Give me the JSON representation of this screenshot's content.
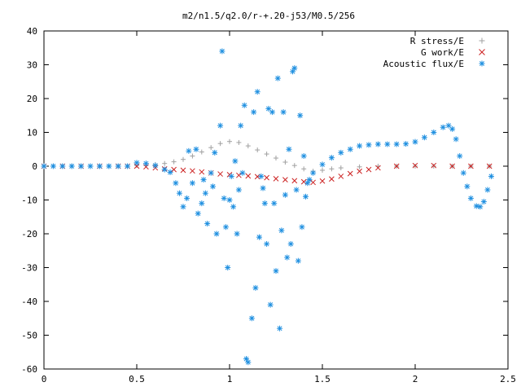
{
  "chart_data": {
    "type": "scatter",
    "title": "m2/n1.5/q2.0/r-+.20-j53/M0.5/256",
    "xlabel": "",
    "ylabel": "",
    "xlim": [
      0,
      2.5
    ],
    "ylim": [
      -60,
      40
    ],
    "x_ticks": [
      0,
      0.5,
      1,
      1.5,
      2,
      2.5
    ],
    "x_tick_labels": [
      "0",
      "0.5",
      "1",
      "1.5",
      "2",
      "2.5"
    ],
    "y_ticks": [
      40,
      30,
      20,
      10,
      0,
      -10,
      -20,
      -30,
      -40,
      -50,
      -60
    ],
    "y_tick_labels": [
      "40",
      "30",
      "20",
      "10",
      "0",
      "-10",
      "-20",
      "-30",
      "-40",
      "-50",
      "-60"
    ],
    "grid": false,
    "legend_position": "top-right",
    "series": [
      {
        "name": "R stress/E",
        "marker": "plus",
        "color": "#a0a0a0",
        "points": [
          [
            0.0,
            0
          ],
          [
            0.05,
            0
          ],
          [
            0.1,
            0
          ],
          [
            0.15,
            0
          ],
          [
            0.2,
            0
          ],
          [
            0.25,
            0
          ],
          [
            0.3,
            0
          ],
          [
            0.35,
            0
          ],
          [
            0.4,
            0
          ],
          [
            0.45,
            0
          ],
          [
            0.5,
            0.2
          ],
          [
            0.55,
            0.3
          ],
          [
            0.6,
            0.5
          ],
          [
            0.65,
            0.8
          ],
          [
            0.7,
            1.3
          ],
          [
            0.75,
            2.0
          ],
          [
            0.8,
            3.0
          ],
          [
            0.85,
            4.2
          ],
          [
            0.9,
            5.5
          ],
          [
            0.95,
            6.7
          ],
          [
            1.0,
            7.3
          ],
          [
            1.05,
            7.0
          ],
          [
            1.1,
            6.0
          ],
          [
            1.15,
            4.8
          ],
          [
            1.2,
            3.6
          ],
          [
            1.25,
            2.4
          ],
          [
            1.3,
            1.2
          ],
          [
            1.35,
            0.2
          ],
          [
            1.4,
            -0.8
          ],
          [
            1.45,
            -1.5
          ],
          [
            1.5,
            -1.2
          ],
          [
            1.55,
            -0.8
          ],
          [
            1.6,
            -0.5
          ],
          [
            1.7,
            -0.2
          ],
          [
            1.8,
            0
          ],
          [
            1.9,
            0
          ],
          [
            2.0,
            0
          ],
          [
            2.1,
            0
          ],
          [
            2.2,
            0
          ],
          [
            2.3,
            0
          ],
          [
            2.4,
            0
          ]
        ]
      },
      {
        "name": "G work/E",
        "marker": "cross",
        "color": "#cc2222",
        "points": [
          [
            0.0,
            0
          ],
          [
            0.1,
            0
          ],
          [
            0.2,
            0
          ],
          [
            0.3,
            0
          ],
          [
            0.4,
            0
          ],
          [
            0.45,
            0
          ],
          [
            0.5,
            0
          ],
          [
            0.55,
            -0.2
          ],
          [
            0.6,
            -0.5
          ],
          [
            0.65,
            -0.8
          ],
          [
            0.7,
            -1.0
          ],
          [
            0.75,
            -1.2
          ],
          [
            0.8,
            -1.4
          ],
          [
            0.85,
            -1.7
          ],
          [
            0.9,
            -2.0
          ],
          [
            0.95,
            -2.3
          ],
          [
            1.0,
            -2.5
          ],
          [
            1.05,
            -2.7
          ],
          [
            1.1,
            -2.9
          ],
          [
            1.15,
            -3.1
          ],
          [
            1.2,
            -3.4
          ],
          [
            1.25,
            -3.7
          ],
          [
            1.3,
            -4.0
          ],
          [
            1.35,
            -4.3
          ],
          [
            1.4,
            -4.6
          ],
          [
            1.45,
            -4.8
          ],
          [
            1.5,
            -4.4
          ],
          [
            1.55,
            -3.8
          ],
          [
            1.6,
            -3.0
          ],
          [
            1.65,
            -2.2
          ],
          [
            1.7,
            -1.5
          ],
          [
            1.75,
            -1.0
          ],
          [
            1.8,
            -0.5
          ],
          [
            1.9,
            0
          ],
          [
            2.0,
            0.2
          ],
          [
            2.1,
            0.2
          ],
          [
            2.2,
            0
          ],
          [
            2.3,
            0
          ],
          [
            2.4,
            0
          ]
        ]
      },
      {
        "name": "Acoustic flux/E",
        "marker": "star",
        "color": "#1e8fe0",
        "points": [
          [
            0.0,
            0
          ],
          [
            0.05,
            0
          ],
          [
            0.1,
            0
          ],
          [
            0.15,
            0
          ],
          [
            0.2,
            0
          ],
          [
            0.25,
            0
          ],
          [
            0.3,
            0
          ],
          [
            0.35,
            0
          ],
          [
            0.4,
            0
          ],
          [
            0.45,
            0
          ],
          [
            0.5,
            1.0
          ],
          [
            0.55,
            0.8
          ],
          [
            0.6,
            0.2
          ],
          [
            0.65,
            -1.0
          ],
          [
            0.68,
            -1.8
          ],
          [
            0.71,
            -5.0
          ],
          [
            0.73,
            -8.0
          ],
          [
            0.75,
            -12.0
          ],
          [
            0.77,
            -9.5
          ],
          [
            0.78,
            4.5
          ],
          [
            0.8,
            -5.0
          ],
          [
            0.82,
            5.0
          ],
          [
            0.83,
            -14.0
          ],
          [
            0.85,
            -11.0
          ],
          [
            0.86,
            -4.0
          ],
          [
            0.87,
            -8.0
          ],
          [
            0.88,
            -17.0
          ],
          [
            0.9,
            -2.0
          ],
          [
            0.91,
            -6.0
          ],
          [
            0.92,
            4.0
          ],
          [
            0.93,
            -20.0
          ],
          [
            0.95,
            12.0
          ],
          [
            0.96,
            34.0
          ],
          [
            0.97,
            -9.5
          ],
          [
            0.98,
            -18.0
          ],
          [
            0.99,
            -30.0
          ],
          [
            1.0,
            -10.0
          ],
          [
            1.01,
            -3.0
          ],
          [
            1.02,
            -12.0
          ],
          [
            1.03,
            1.5
          ],
          [
            1.04,
            -20.0
          ],
          [
            1.05,
            -7.0
          ],
          [
            1.06,
            12.0
          ],
          [
            1.07,
            -2.0
          ],
          [
            1.08,
            18.0
          ],
          [
            1.09,
            -57.0
          ],
          [
            1.1,
            -58.0
          ],
          [
            1.12,
            -45.0
          ],
          [
            1.13,
            16.0
          ],
          [
            1.14,
            -36.0
          ],
          [
            1.15,
            22.0
          ],
          [
            1.16,
            -21.0
          ],
          [
            1.17,
            -3.0
          ],
          [
            1.18,
            -6.5
          ],
          [
            1.19,
            -11.0
          ],
          [
            1.2,
            -23.0
          ],
          [
            1.21,
            17.0
          ],
          [
            1.22,
            -41.0
          ],
          [
            1.23,
            16.0
          ],
          [
            1.24,
            -11.0
          ],
          [
            1.25,
            -31.0
          ],
          [
            1.26,
            26.0
          ],
          [
            1.27,
            -48.0
          ],
          [
            1.28,
            -19.0
          ],
          [
            1.29,
            16.0
          ],
          [
            1.3,
            -8.5
          ],
          [
            1.31,
            -27.0
          ],
          [
            1.32,
            5.0
          ],
          [
            1.33,
            -23.0
          ],
          [
            1.34,
            28.0
          ],
          [
            1.35,
            29.0
          ],
          [
            1.36,
            -7.0
          ],
          [
            1.37,
            -28.0
          ],
          [
            1.38,
            15.0
          ],
          [
            1.39,
            -18.0
          ],
          [
            1.4,
            3.0
          ],
          [
            1.41,
            -9.0
          ],
          [
            1.42,
            -5.0
          ],
          [
            1.43,
            -4.0
          ],
          [
            1.45,
            -2.0
          ],
          [
            1.5,
            0.5
          ],
          [
            1.55,
            2.5
          ],
          [
            1.6,
            4.0
          ],
          [
            1.65,
            5.0
          ],
          [
            1.7,
            6.0
          ],
          [
            1.75,
            6.3
          ],
          [
            1.8,
            6.5
          ],
          [
            1.85,
            6.5
          ],
          [
            1.9,
            6.5
          ],
          [
            1.95,
            6.6
          ],
          [
            2.0,
            7.2
          ],
          [
            2.05,
            8.5
          ],
          [
            2.1,
            10.0
          ],
          [
            2.15,
            11.5
          ],
          [
            2.18,
            12.0
          ],
          [
            2.2,
            11.0
          ],
          [
            2.22,
            8.0
          ],
          [
            2.24,
            3.0
          ],
          [
            2.26,
            -2.0
          ],
          [
            2.28,
            -6.0
          ],
          [
            2.3,
            -9.5
          ],
          [
            2.33,
            -11.8
          ],
          [
            2.35,
            -12.0
          ],
          [
            2.37,
            -10.5
          ],
          [
            2.39,
            -7.0
          ],
          [
            2.41,
            -3.0
          ]
        ]
      }
    ]
  }
}
